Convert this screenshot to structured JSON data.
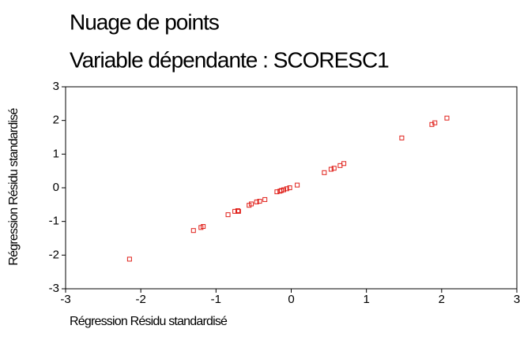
{
  "chart_data": {
    "type": "scatter",
    "title": "Nuage de points",
    "subtitle": "Variable dépendante : SCORESC1",
    "xlabel": "Régression Résidu standardisé",
    "ylabel": "Régression Résidu standardisé",
    "xlim": [
      -3,
      3
    ],
    "ylim": [
      -3,
      3
    ],
    "xticks": [
      -3,
      -2,
      -1,
      0,
      1,
      2,
      3
    ],
    "yticks": [
      -3,
      -2,
      -1,
      0,
      1,
      2,
      3
    ],
    "grid": false,
    "color": "#e0201a",
    "x": [
      -2.15,
      -1.3,
      -1.2,
      -1.17,
      -0.84,
      -0.75,
      -0.71,
      -0.7,
      -0.56,
      -0.53,
      -0.46,
      -0.42,
      -0.35,
      -0.19,
      -0.15,
      -0.13,
      -0.1,
      -0.06,
      -0.02,
      0.08,
      0.44,
      0.53,
      0.57,
      0.65,
      0.7,
      1.47,
      1.87,
      1.91,
      2.07
    ],
    "y": [
      -2.12,
      -1.27,
      -1.18,
      -1.15,
      -0.8,
      -0.7,
      -0.68,
      -0.7,
      -0.52,
      -0.48,
      -0.42,
      -0.4,
      -0.35,
      -0.12,
      -0.1,
      -0.08,
      -0.06,
      -0.03,
      0.0,
      0.08,
      0.45,
      0.55,
      0.58,
      0.66,
      0.72,
      1.48,
      1.88,
      1.93,
      2.07
    ]
  }
}
